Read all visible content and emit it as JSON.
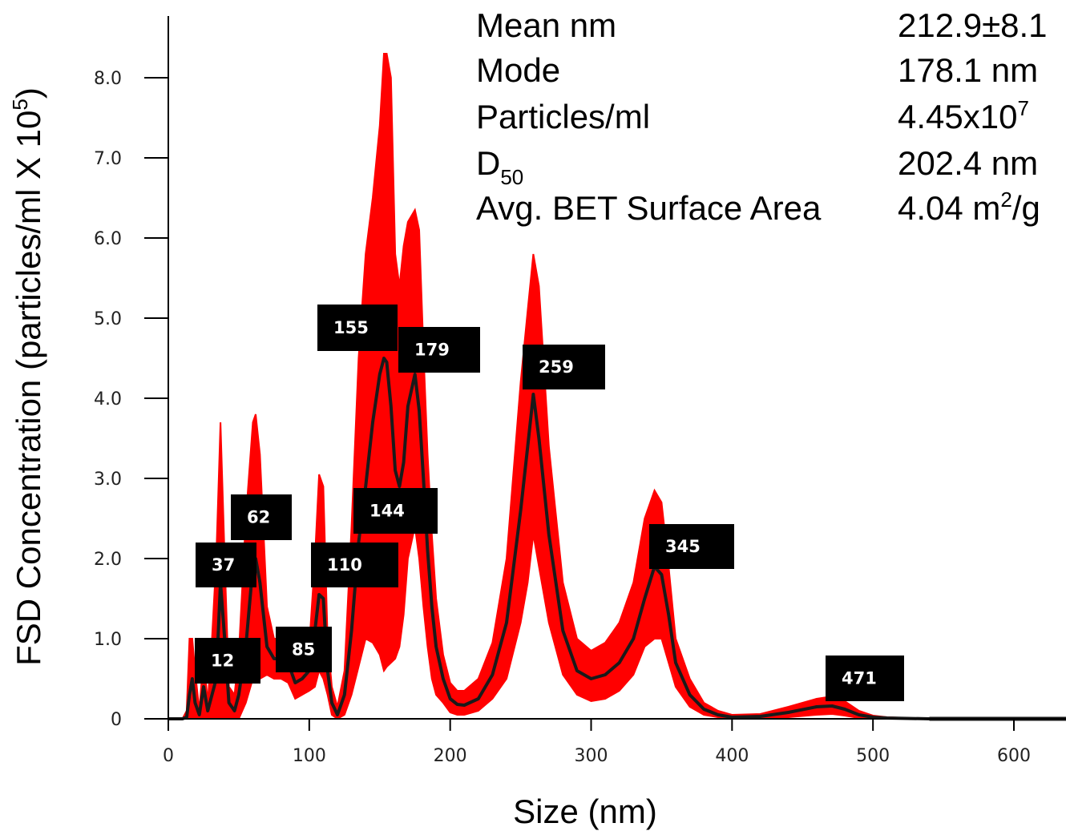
{
  "chart_data": {
    "type": "area",
    "xlabel": "Size (nm)",
    "ylabel": "FSD Concentration (particles/ml X 10",
    "ylabel_sup": "5",
    "ylabel_close": ")",
    "xlim": [
      0,
      640
    ],
    "ylim": [
      0,
      8.6
    ],
    "x_ticks": [
      0,
      100,
      200,
      300,
      400,
      500,
      600
    ],
    "x_tick_labels": [
      "0",
      "100",
      "200",
      "300",
      "400",
      "500",
      "600"
    ],
    "y_ticks": [
      0,
      1,
      2,
      3,
      4,
      5,
      6,
      7,
      8
    ],
    "y_tick_labels": [
      "0",
      "1.0",
      "2.0",
      "3.0",
      "4.0",
      "5.0",
      "6.0",
      "7.0",
      "8.0"
    ],
    "series": [
      {
        "role": "mean",
        "color": "#1a1a1a",
        "x": [
          0,
          10,
          13,
          15,
          17,
          19,
          22,
          25,
          28,
          31,
          34,
          37,
          40,
          43,
          47,
          50,
          55,
          60,
          62,
          65,
          70,
          75,
          80,
          85,
          90,
          95,
          100,
          104,
          107,
          110,
          113,
          116,
          120,
          125,
          130,
          135,
          140,
          145,
          150,
          153,
          155,
          158,
          161,
          164,
          167,
          170,
          175,
          178,
          181,
          184,
          187,
          190,
          195,
          200,
          205,
          210,
          220,
          230,
          240,
          250,
          255,
          259,
          263,
          270,
          280,
          290,
          300,
          310,
          320,
          330,
          338,
          345,
          350,
          355,
          360,
          370,
          380,
          390,
          400,
          420,
          440,
          460,
          471,
          480,
          490,
          500,
          510,
          540,
          640
        ],
        "y": [
          0,
          0,
          0.02,
          0.3,
          0.5,
          0.2,
          0.05,
          0.4,
          0.1,
          0.3,
          0.5,
          1.7,
          1.0,
          0.2,
          0.1,
          0.3,
          0.9,
          1.9,
          2.0,
          1.7,
          0.9,
          0.75,
          0.75,
          0.7,
          0.45,
          0.5,
          0.6,
          1.1,
          1.55,
          1.5,
          0.6,
          0.2,
          0.05,
          0.3,
          1.1,
          2.2,
          2.9,
          3.7,
          4.3,
          4.5,
          4.45,
          3.9,
          3.1,
          2.9,
          3.2,
          3.9,
          4.3,
          3.85,
          3.0,
          2.1,
          1.4,
          0.9,
          0.5,
          0.25,
          0.18,
          0.17,
          0.25,
          0.55,
          1.2,
          2.6,
          3.4,
          4.05,
          3.5,
          2.3,
          1.1,
          0.6,
          0.5,
          0.55,
          0.7,
          1.0,
          1.5,
          1.9,
          1.8,
          1.3,
          0.7,
          0.3,
          0.12,
          0.05,
          0.02,
          0.03,
          0.08,
          0.15,
          0.16,
          0.12,
          0.05,
          0.02,
          0.01,
          0,
          0
        ]
      },
      {
        "role": "error-band-upper",
        "color": "#ff0000",
        "x": [
          0,
          10,
          13,
          15,
          17,
          19,
          22,
          25,
          28,
          31,
          34,
          37,
          40,
          43,
          47,
          50,
          55,
          60,
          62,
          65,
          70,
          75,
          80,
          85,
          90,
          95,
          100,
          104,
          107,
          110,
          113,
          116,
          120,
          125,
          130,
          135,
          140,
          145,
          150,
          153,
          155,
          158,
          161,
          164,
          167,
          170,
          175,
          178,
          181,
          184,
          187,
          190,
          195,
          200,
          205,
          210,
          220,
          230,
          240,
          250,
          255,
          259,
          263,
          270,
          280,
          290,
          300,
          310,
          320,
          330,
          338,
          345,
          350,
          355,
          360,
          370,
          380,
          390,
          400,
          420,
          440,
          460,
          471,
          480,
          490,
          500,
          510,
          540,
          640
        ],
        "y": [
          0,
          0,
          0.1,
          1.0,
          1.0,
          0.6,
          0.1,
          0.8,
          0.2,
          1.0,
          2.0,
          3.7,
          2.0,
          0.4,
          0.3,
          0.8,
          2.5,
          3.7,
          3.8,
          3.3,
          1.4,
          1.0,
          1.0,
          0.95,
          0.7,
          0.8,
          0.9,
          2.0,
          3.05,
          2.9,
          1.0,
          0.4,
          0.15,
          0.6,
          2.4,
          4.5,
          5.8,
          6.5,
          7.4,
          8.3,
          8.3,
          8.0,
          5.8,
          5.4,
          5.9,
          6.2,
          6.35,
          6.1,
          4.6,
          3.3,
          2.3,
          1.5,
          0.8,
          0.45,
          0.35,
          0.35,
          0.5,
          0.95,
          2.0,
          4.2,
          5.1,
          5.8,
          5.4,
          3.4,
          1.7,
          1.0,
          0.85,
          0.95,
          1.2,
          1.7,
          2.5,
          2.85,
          2.7,
          1.9,
          1.0,
          0.5,
          0.2,
          0.1,
          0.05,
          0.06,
          0.15,
          0.25,
          0.28,
          0.22,
          0.1,
          0.04,
          0.02,
          0,
          0
        ]
      },
      {
        "role": "error-band-lower",
        "color": "#ff0000",
        "x": [
          0,
          10,
          13,
          15,
          17,
          19,
          22,
          25,
          28,
          31,
          34,
          37,
          40,
          43,
          47,
          50,
          55,
          60,
          62,
          65,
          70,
          75,
          80,
          85,
          90,
          95,
          100,
          104,
          107,
          110,
          113,
          116,
          120,
          125,
          130,
          135,
          140,
          145,
          150,
          153,
          155,
          158,
          161,
          164,
          167,
          170,
          175,
          178,
          181,
          184,
          187,
          190,
          195,
          200,
          205,
          210,
          220,
          230,
          240,
          250,
          255,
          259,
          263,
          270,
          280,
          290,
          300,
          310,
          320,
          330,
          338,
          345,
          350,
          355,
          360,
          370,
          380,
          390,
          400,
          420,
          440,
          460,
          471,
          480,
          490,
          500,
          510,
          540,
          640
        ],
        "y": [
          0,
          0,
          0,
          0,
          0,
          0,
          0,
          0,
          0,
          0,
          0,
          0,
          0,
          0,
          0,
          0,
          0.2,
          0.5,
          0.6,
          0.5,
          0.55,
          0.5,
          0.5,
          0.45,
          0.25,
          0.3,
          0.35,
          0.4,
          0.6,
          0.5,
          0.3,
          0.05,
          0,
          0.05,
          0.3,
          0.65,
          1.0,
          0.95,
          0.8,
          0.6,
          0.65,
          0.7,
          0.75,
          0.9,
          1.3,
          2.0,
          2.4,
          2.0,
          1.4,
          0.9,
          0.5,
          0.3,
          0.2,
          0.08,
          0.05,
          0.05,
          0.1,
          0.25,
          0.5,
          1.2,
          1.7,
          2.3,
          1.9,
          1.2,
          0.55,
          0.3,
          0.22,
          0.25,
          0.35,
          0.55,
          0.9,
          1.0,
          1.0,
          0.7,
          0.4,
          0.15,
          0.05,
          0.02,
          0,
          0,
          0.02,
          0.05,
          0.06,
          0.04,
          0.01,
          0,
          0,
          0,
          0
        ]
      }
    ],
    "peak_labels": [
      {
        "x": 155,
        "text": "155"
      },
      {
        "x": 179,
        "text": "179"
      },
      {
        "x": 259,
        "text": "259"
      },
      {
        "x": 62,
        "text": "62"
      },
      {
        "x": 144,
        "text": "144"
      },
      {
        "x": 37,
        "text": "37"
      },
      {
        "x": 110,
        "text": "110"
      },
      {
        "x": 345,
        "text": "345"
      },
      {
        "x": 85,
        "text": "85"
      },
      {
        "x": 12,
        "text": "12"
      },
      {
        "x": 471,
        "text": "471"
      }
    ],
    "stats_table": [
      {
        "label": "Mean nm",
        "value": "212.9±8.1"
      },
      {
        "label": "Mode",
        "value": "178.1 nm"
      },
      {
        "label": "Particles/ml",
        "value": "4.45x10",
        "value_sup": "7"
      },
      {
        "label": "D",
        "label_sub": "50",
        "value": "202.4 nm"
      },
      {
        "label": "Avg. BET Surface Area",
        "value": "4.04 m",
        "value_sup": "2",
        "value_tail": "/g"
      }
    ]
  }
}
